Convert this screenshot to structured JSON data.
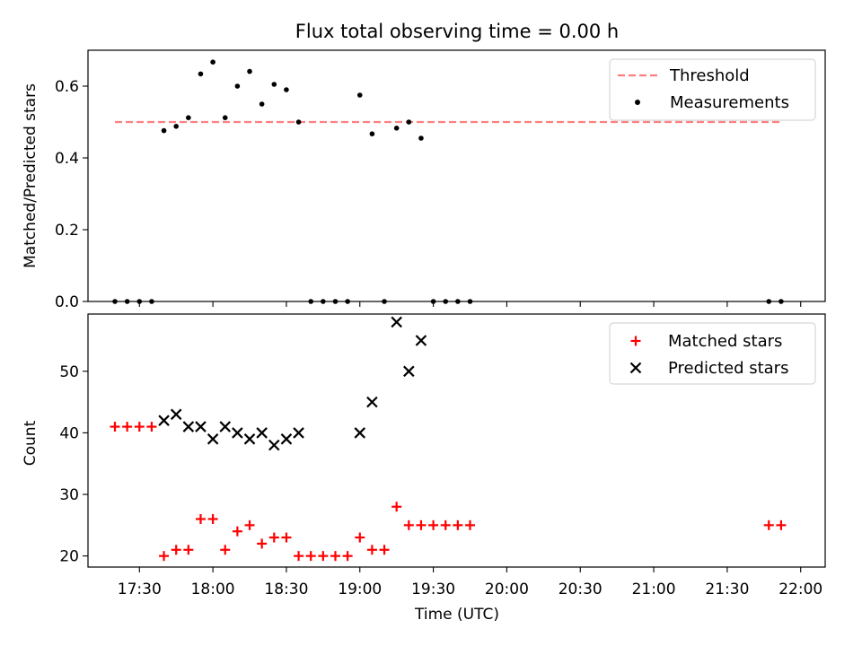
{
  "chart_data": [
    {
      "type": "scatter",
      "title": "Flux total observing time = 0.00 h",
      "xlabel": "",
      "ylabel": "Matched/Predicted stars",
      "xlim": [
        "17:09",
        "22:10"
      ],
      "ylim": [
        0,
        0.7
      ],
      "yticks": [
        "0.0",
        "0.2",
        "0.4",
        "0.6"
      ],
      "grid": false,
      "legend_position": "top-right",
      "threshold": {
        "name": "Threshold",
        "y": 0.5,
        "x_range": [
          "17:20",
          "21:52"
        ],
        "color": "#ff7f7f",
        "style": "dashed"
      },
      "series": [
        {
          "name": "Measurements",
          "marker": "dot",
          "color": "#000000",
          "points": [
            [
              "17:20",
              0.0
            ],
            [
              "17:25",
              0.0
            ],
            [
              "17:30",
              0.0
            ],
            [
              "17:35",
              0.0
            ],
            [
              "17:40",
              0.476
            ],
            [
              "17:45",
              0.488
            ],
            [
              "17:50",
              0.512
            ],
            [
              "17:55",
              0.634
            ],
            [
              "18:00",
              0.667
            ],
            [
              "18:05",
              0.512
            ],
            [
              "18:10",
              0.6
            ],
            [
              "18:15",
              0.641
            ],
            [
              "18:20",
              0.55
            ],
            [
              "18:25",
              0.605
            ],
            [
              "18:30",
              0.59
            ],
            [
              "18:35",
              0.5
            ],
            [
              "18:40",
              0.0
            ],
            [
              "18:45",
              0.0
            ],
            [
              "18:50",
              0.0
            ],
            [
              "18:55",
              0.0
            ],
            [
              "19:00",
              0.575
            ],
            [
              "19:05",
              0.467
            ],
            [
              "19:10",
              0.0
            ],
            [
              "19:15",
              0.483
            ],
            [
              "19:20",
              0.5
            ],
            [
              "19:25",
              0.455
            ],
            [
              "19:30",
              0.0
            ],
            [
              "19:35",
              0.0
            ],
            [
              "19:40",
              0.0
            ],
            [
              "19:45",
              0.0
            ],
            [
              "21:47",
              0.0
            ],
            [
              "21:52",
              0.0
            ]
          ]
        }
      ]
    },
    {
      "type": "scatter",
      "title": "",
      "xlabel": "Time (UTC)",
      "ylabel": "Count",
      "xlim": [
        "17:09",
        "22:10"
      ],
      "ylim": [
        18.2,
        59.3
      ],
      "yticks": [
        "20",
        "30",
        "40",
        "50"
      ],
      "xticks": [
        "17:30",
        "18:00",
        "18:30",
        "19:00",
        "19:30",
        "20:00",
        "20:30",
        "21:00",
        "21:30",
        "22:00"
      ],
      "grid": false,
      "legend_position": "top-right",
      "series": [
        {
          "name": "Matched stars",
          "marker": "plus",
          "color": "#ff0000",
          "points": [
            [
              "17:20",
              41
            ],
            [
              "17:25",
              41
            ],
            [
              "17:30",
              41
            ],
            [
              "17:35",
              41
            ],
            [
              "17:40",
              20
            ],
            [
              "17:45",
              21
            ],
            [
              "17:50",
              21
            ],
            [
              "17:55",
              26
            ],
            [
              "18:00",
              26
            ],
            [
              "18:05",
              21
            ],
            [
              "18:10",
              24
            ],
            [
              "18:15",
              25
            ],
            [
              "18:20",
              22
            ],
            [
              "18:25",
              23
            ],
            [
              "18:30",
              23
            ],
            [
              "18:35",
              20
            ],
            [
              "18:40",
              20
            ],
            [
              "18:45",
              20
            ],
            [
              "18:50",
              20
            ],
            [
              "18:55",
              20
            ],
            [
              "19:00",
              23
            ],
            [
              "19:05",
              21
            ],
            [
              "19:10",
              21
            ],
            [
              "19:15",
              28
            ],
            [
              "19:20",
              25
            ],
            [
              "19:25",
              25
            ],
            [
              "19:30",
              25
            ],
            [
              "19:35",
              25
            ],
            [
              "19:40",
              25
            ],
            [
              "19:45",
              25
            ],
            [
              "21:47",
              25
            ],
            [
              "21:52",
              25
            ]
          ]
        },
        {
          "name": "Predicted stars",
          "marker": "x",
          "color": "#000000",
          "points": [
            [
              "17:40",
              42
            ],
            [
              "17:45",
              43
            ],
            [
              "17:50",
              41
            ],
            [
              "17:55",
              41
            ],
            [
              "18:00",
              39
            ],
            [
              "18:05",
              41
            ],
            [
              "18:10",
              40
            ],
            [
              "18:15",
              39
            ],
            [
              "18:20",
              40
            ],
            [
              "18:25",
              38
            ],
            [
              "18:30",
              39
            ],
            [
              "18:35",
              40
            ],
            [
              "19:00",
              40
            ],
            [
              "19:05",
              45
            ],
            [
              "19:15",
              58
            ],
            [
              "19:20",
              50
            ],
            [
              "19:25",
              55
            ]
          ]
        }
      ]
    }
  ]
}
